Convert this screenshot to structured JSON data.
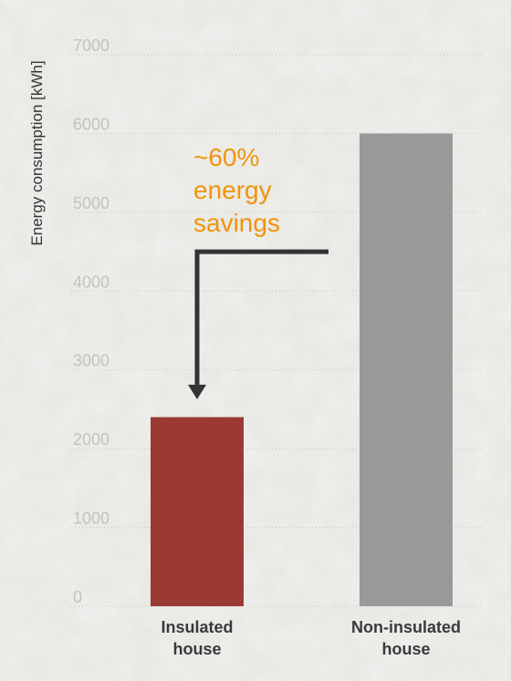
{
  "chart_data": {
    "type": "bar",
    "ylabel": "Energy consumption [kWh]",
    "ylim": [
      0,
      7000
    ],
    "yticks": [
      0,
      1000,
      2000,
      3000,
      4000,
      5000,
      6000,
      7000
    ],
    "grid": true,
    "categories": [
      {
        "lines": [
          "Insulated",
          "house"
        ]
      },
      {
        "lines": [
          "Non-insulated",
          "house"
        ]
      }
    ],
    "values": [
      2400,
      6000
    ],
    "bar_colors": [
      "#9a3a33",
      "#999999"
    ],
    "annotation": {
      "lines": [
        "~60%",
        "energy",
        "savings"
      ],
      "color": "#f0940a",
      "arrow_color": "#333333",
      "arrow_from_value": 4500
    }
  }
}
